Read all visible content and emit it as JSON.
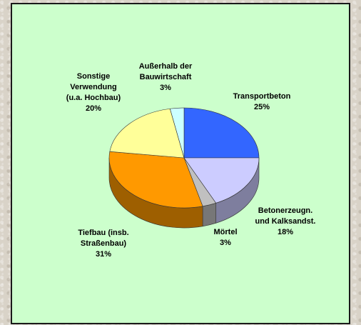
{
  "chart_data": {
    "type": "pie",
    "title": "",
    "colors_meaning": "slice fill colors",
    "slices": [
      {
        "label_lines": [
          "Transportbeton"
        ],
        "value_label": "25%",
        "value": 25,
        "color": "#3366ff"
      },
      {
        "label_lines": [
          "Betonerzeugn.",
          "und Kalksandst."
        ],
        "value_label": "18%",
        "value": 18,
        "color": "#ccccff"
      },
      {
        "label_lines": [
          "Mörtel"
        ],
        "value_label": "3%",
        "value": 3,
        "color": "#c0c0c0"
      },
      {
        "label_lines": [
          "Tiefbau (insb.",
          "Straßenbau)"
        ],
        "value_label": "31%",
        "value": 31,
        "color": "#ff9900"
      },
      {
        "label_lines": [
          "Sonstige",
          "Verwendung",
          "(u.a. Hochbau)"
        ],
        "value_label": "20%",
        "value": 20,
        "color": "#ffff99"
      },
      {
        "label_lines": [
          "Außerhalb der",
          "Bauwirtschaft"
        ],
        "value_label": "3%",
        "value": 3,
        "color": "#ccffff"
      }
    ],
    "start_angle_deg": 0,
    "three_d": true,
    "legend": "none"
  }
}
